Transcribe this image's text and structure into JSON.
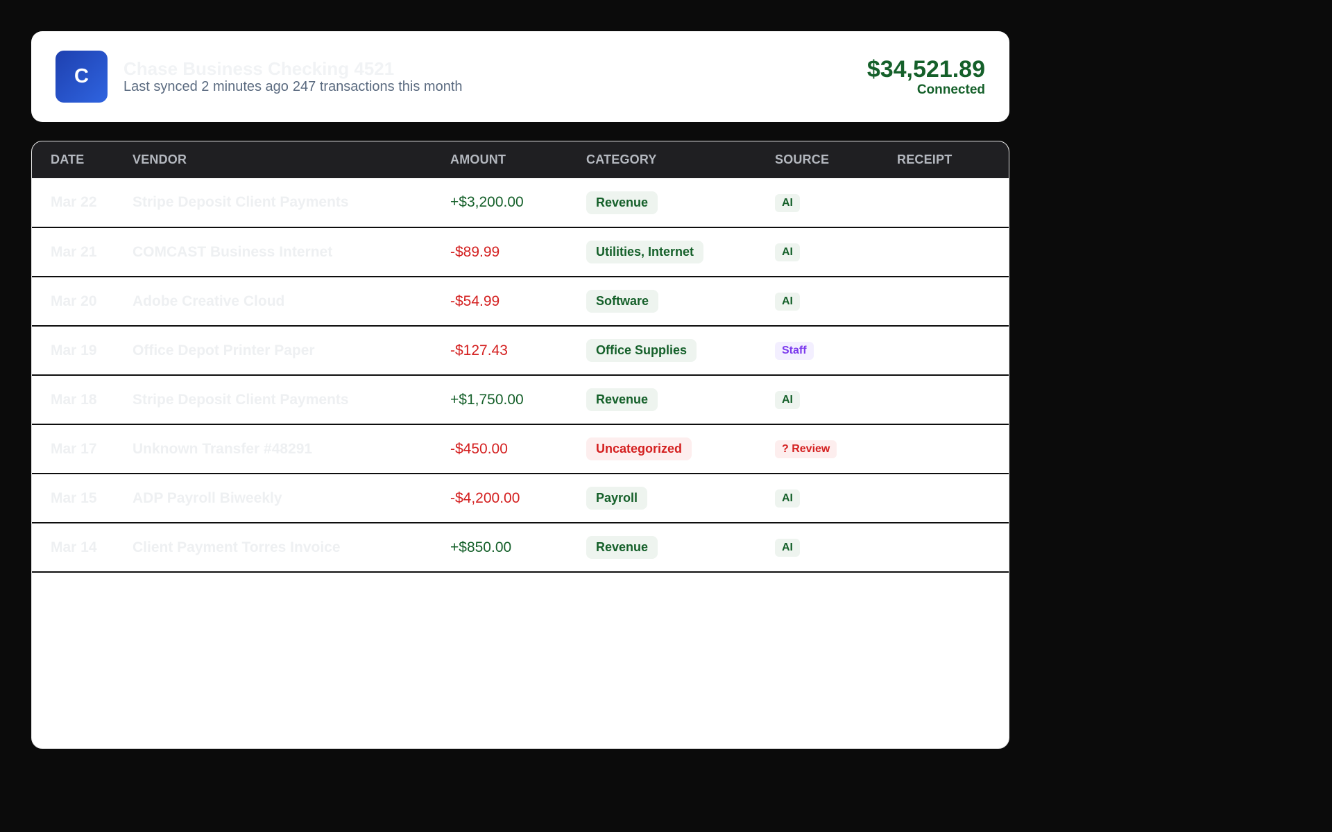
{
  "account": {
    "logo_letter": "C",
    "name": "Chase Business Checking 4521",
    "sync_status": "Last synced 2 minutes ago",
    "transaction_count": "247 transactions this month",
    "balance": "$34,521.89",
    "connection_status": "Connected"
  },
  "table": {
    "columns": [
      "DATE",
      "VENDOR",
      "AMOUNT",
      "CATEGORY",
      "SOURCE",
      "RECEIPT"
    ],
    "rows": [
      {
        "date": "Mar 22",
        "vendor": "Stripe Deposit Client Payments",
        "amount": "+$3,200.00",
        "direction": "in",
        "category": "Revenue",
        "category_status": "ok",
        "source": "AI",
        "source_type": "ai"
      },
      {
        "date": "Mar 21",
        "vendor": "COMCAST Business Internet",
        "amount": "-$89.99",
        "direction": "out",
        "category": "Utilities, Internet",
        "category_status": "ok",
        "source": "AI",
        "source_type": "ai"
      },
      {
        "date": "Mar 20",
        "vendor": "Adobe Creative Cloud",
        "amount": "-$54.99",
        "direction": "out",
        "category": "Software",
        "category_status": "ok",
        "source": "AI",
        "source_type": "ai"
      },
      {
        "date": "Mar 19",
        "vendor": "Office Depot Printer Paper",
        "amount": "-$127.43",
        "direction": "out",
        "category": "Office Supplies",
        "category_status": "ok",
        "source": "Staff",
        "source_type": "staff"
      },
      {
        "date": "Mar 18",
        "vendor": "Stripe Deposit Client Payments",
        "amount": "+$1,750.00",
        "direction": "in",
        "category": "Revenue",
        "category_status": "ok",
        "source": "AI",
        "source_type": "ai"
      },
      {
        "date": "Mar 17",
        "vendor": "Unknown Transfer #48291",
        "amount": "-$450.00",
        "direction": "out",
        "category": "Uncategorized",
        "category_status": "warn",
        "source": "? Review",
        "source_type": "review"
      },
      {
        "date": "Mar 15",
        "vendor": "ADP Payroll Biweekly",
        "amount": "-$4,200.00",
        "direction": "out",
        "category": "Payroll",
        "category_status": "ok",
        "source": "AI",
        "source_type": "ai"
      },
      {
        "date": "Mar 14",
        "vendor": "Client Payment Torres Invoice",
        "amount": "+$850.00",
        "direction": "in",
        "category": "Revenue",
        "category_status": "ok",
        "source": "AI",
        "source_type": "ai"
      }
    ]
  },
  "colors": {
    "positive": "#15602a",
    "negative": "#d42020",
    "staff": "#7c3aed",
    "logo_blue": "#2f64e0"
  }
}
